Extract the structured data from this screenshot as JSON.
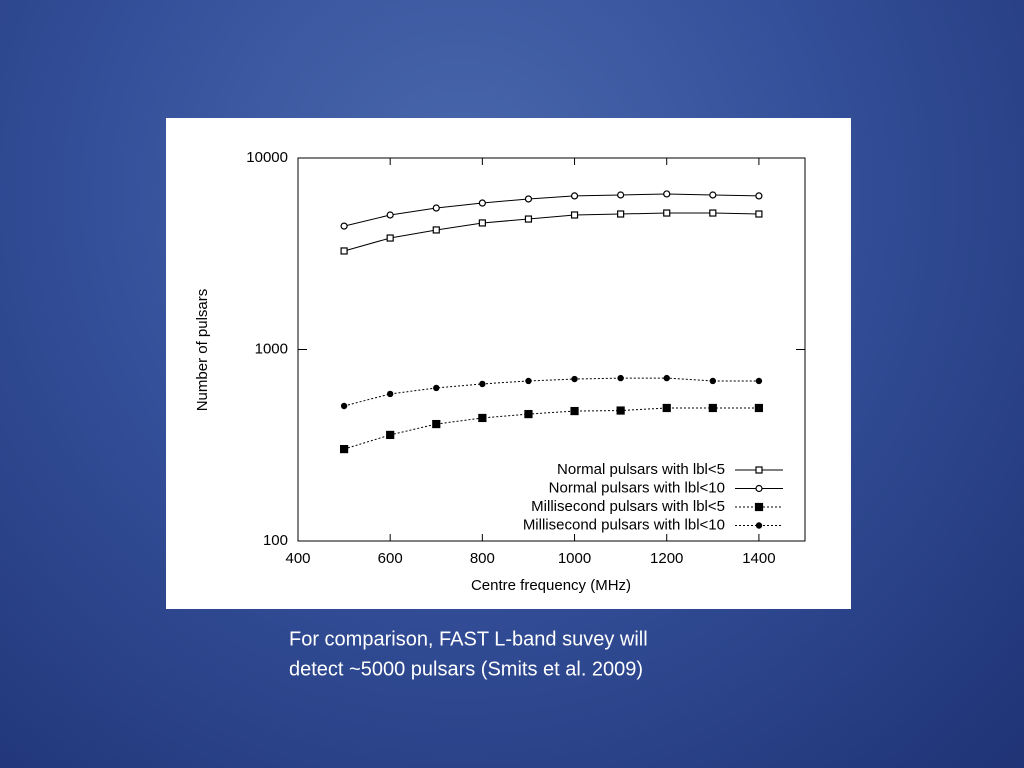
{
  "chart_data": {
    "type": "line",
    "x_label": "Centre frequency (MHz)",
    "y_label": "Number of pulsars",
    "x": [
      500,
      600,
      700,
      800,
      900,
      1000,
      1100,
      1200,
      1300,
      1400
    ],
    "series": [
      {
        "name": "Normal pulsars with lbl<5",
        "color": "#000000",
        "style": "solid",
        "marker": "square-open",
        "values": [
          3270,
          3820,
          4210,
          4580,
          4800,
          5040,
          5100,
          5160,
          5160,
          5100
        ]
      },
      {
        "name": "Normal pulsars with lbl<10",
        "color": "#000000",
        "style": "solid",
        "marker": "circle-open",
        "values": [
          4410,
          5040,
          5480,
          5820,
          6110,
          6340,
          6410,
          6490,
          6410,
          6340
        ]
      },
      {
        "name": "Millisecond pulsars with lbl<5",
        "color": "#000000",
        "style": "dotted",
        "marker": "square-filled",
        "values": [
          302,
          358,
          408,
          439,
          460,
          477,
          480,
          495,
          495,
          495
        ]
      },
      {
        "name": "Millisecond pulsars with lbl<10",
        "color": "#000000",
        "style": "dotted",
        "marker": "circle-filled",
        "values": [
          507,
          586,
          630,
          661,
          685,
          701,
          709,
          709,
          685,
          685
        ]
      }
    ],
    "xlim": [
      400,
      1500
    ],
    "xticks": [
      400,
      600,
      800,
      1000,
      1200,
      1400
    ],
    "ylim": [
      100,
      10000
    ],
    "yticks": [
      100,
      1000,
      10000
    ],
    "ylog": true,
    "legend": "lower-right"
  },
  "caption": [
    "For comparison, FAST L-band suvey will",
    "detect ~5000 pulsars (Smits et al. 2009)"
  ]
}
